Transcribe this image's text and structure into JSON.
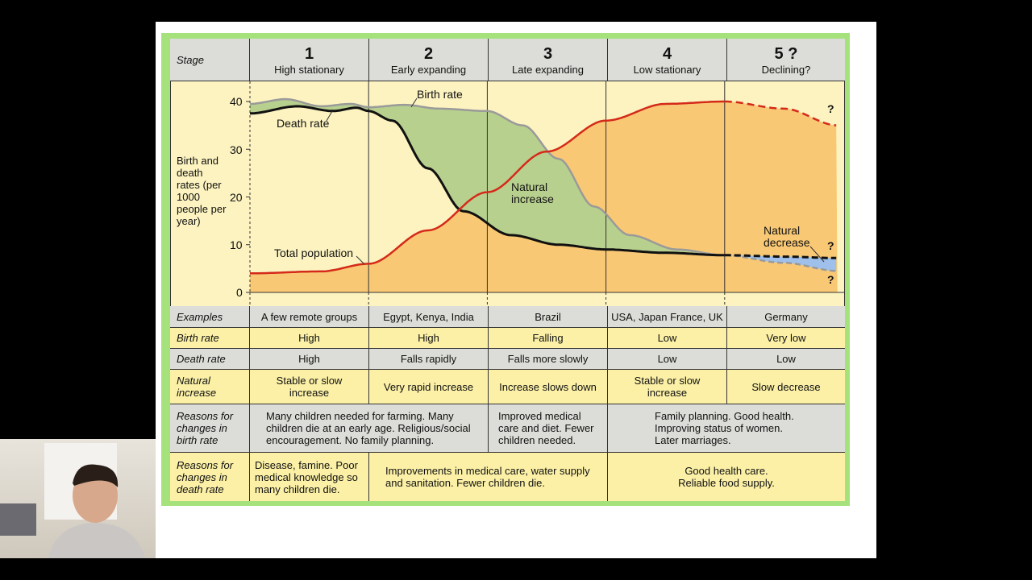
{
  "header": {
    "stage_label": "Stage",
    "stages": [
      {
        "num": "1",
        "name": "High stationary"
      },
      {
        "num": "2",
        "name": "Early expanding"
      },
      {
        "num": "3",
        "name": "Late expanding"
      },
      {
        "num": "4",
        "name": "Low stationary"
      },
      {
        "num": "5 ?",
        "name": "Declining?"
      }
    ]
  },
  "chart": {
    "y_axis_label": "Birth and death rates (per 1000 people per year)",
    "y_ticks": [
      "0",
      "10",
      "20",
      "30",
      "40"
    ],
    "labels": {
      "birth": "Birth rate",
      "death": "Death rate",
      "total": "Total population",
      "natural_increase": "Natural increase",
      "natural_decrease": "Natural decrease",
      "q": "?"
    },
    "colors": {
      "birth": "#9a9a9a",
      "death": "#111111",
      "total": "#d42a1a",
      "green": "#b8d08e",
      "orange": "#f9c874",
      "blue": "#9ec0ea",
      "bg": "#fcf3c0"
    }
  },
  "chart_data": {
    "type": "line",
    "ylim": [
      0,
      40
    ],
    "xlabel": "Stage",
    "series": [
      {
        "name": "Birth rate",
        "x": [
          0,
          0.3,
          0.6,
          0.85,
          1,
          1.3,
          1.6,
          2,
          2.3,
          2.6,
          2.9,
          3.2,
          3.6,
          4,
          4.5,
          4.95
        ],
        "y": [
          39.5,
          40.5,
          39,
          39.5,
          38.8,
          39.3,
          38.5,
          38,
          35,
          28,
          18,
          12,
          9,
          7.8,
          6.2,
          4.5
        ]
      },
      {
        "name": "Death rate",
        "x": [
          0,
          0.4,
          0.7,
          0.9,
          1,
          1.2,
          1.5,
          1.8,
          2.2,
          2.6,
          3,
          3.5,
          4,
          4.5,
          4.95
        ],
        "y": [
          37.5,
          39,
          38,
          38.7,
          38,
          36,
          26,
          17,
          12,
          10,
          9,
          8.3,
          7.8,
          7.5,
          7.2
        ]
      },
      {
        "name": "Total population",
        "x": [
          0,
          0.6,
          1,
          1.5,
          2,
          2.5,
          3,
          3.5,
          4,
          4.5,
          4.95
        ],
        "y": [
          4,
          4.4,
          6,
          13,
          21,
          29.5,
          36,
          39.5,
          40,
          38.5,
          35
        ]
      }
    ]
  },
  "rows": [
    {
      "label": "Examples",
      "cells": [
        "A few remote groups",
        "Egypt, Kenya, India",
        "Brazil",
        "USA, Japan France, UK",
        "Germany"
      ]
    },
    {
      "label": "Birth rate",
      "cells": [
        "High",
        "High",
        "Falling",
        "Low",
        "Very low"
      ]
    },
    {
      "label": "Death rate",
      "cells": [
        "High",
        "Falls rapidly",
        "Falls more slowly",
        "Low",
        "Low"
      ]
    },
    {
      "label": "Natural increase",
      "cells": [
        "Stable or slow increase",
        "Very rapid increase",
        "Increase slows down",
        "Stable or slow increase",
        "Slow decrease"
      ]
    },
    {
      "label": "Reasons for changes in birth rate",
      "cells": [
        "Many children needed for farming. Many children die at an early age. Religious/social encouragement. No family planning.",
        "Improved medical care and diet. Fewer children needed.",
        "Family planning. Good health. Improving status of women. Later marriages."
      ]
    },
    {
      "label": "Reasons for changes in death rate",
      "cells": [
        "Disease, famine. Poor medical knowledge so many children die.",
        "Improvements in medical care, water supply and sanitation. Fewer children die.",
        "Good health care. Reliable food supply."
      ]
    }
  ]
}
